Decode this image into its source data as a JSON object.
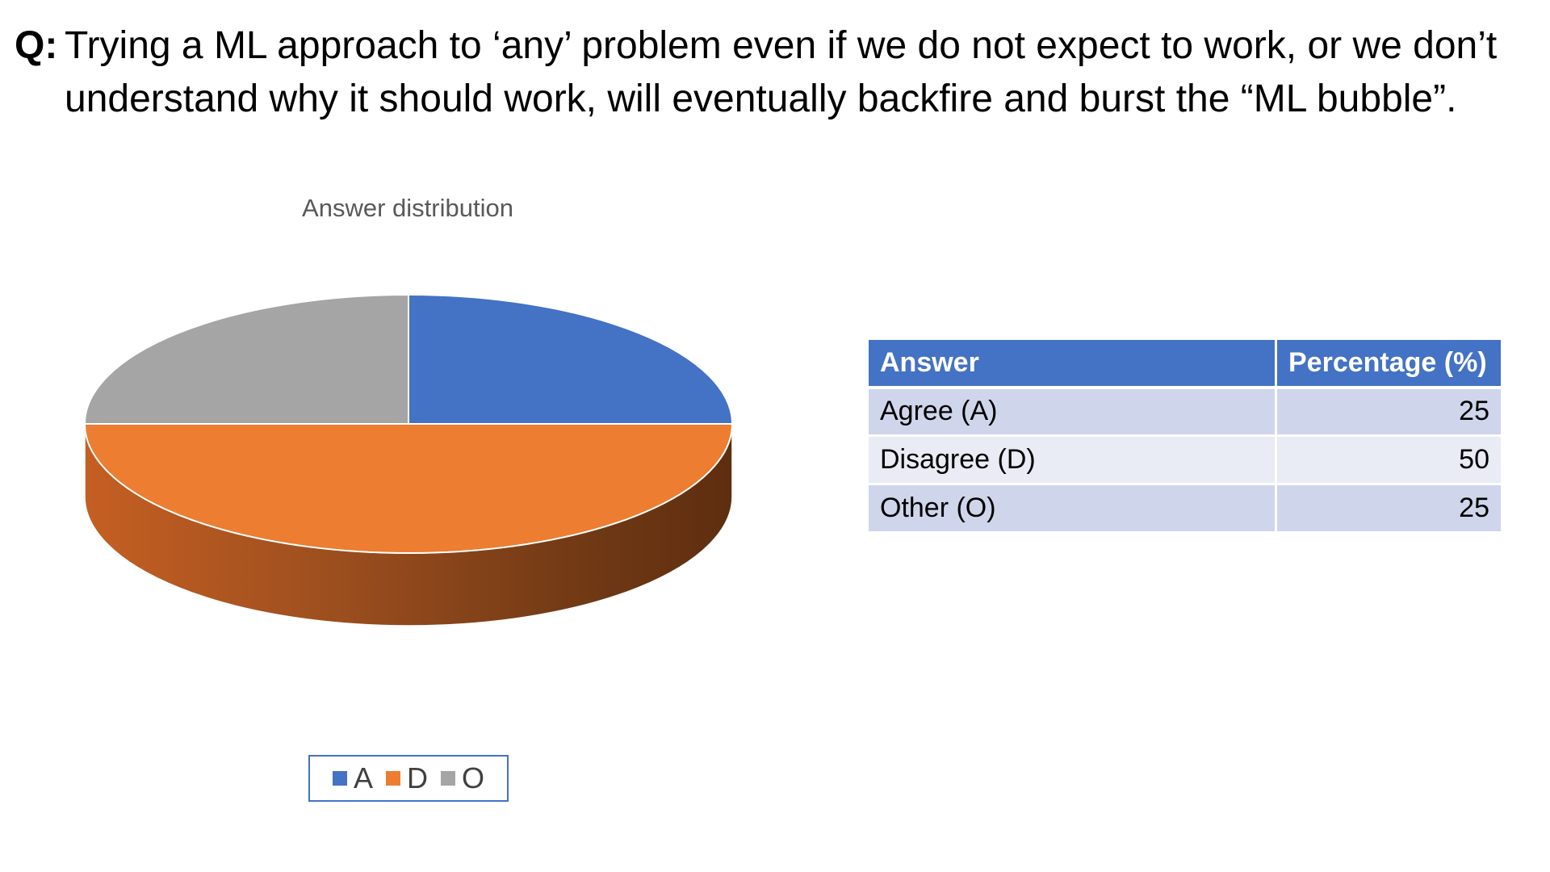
{
  "question": {
    "prefix": "Q:",
    "text": "Trying a ML approach to ‘any’ problem even if we do not expect to work, or we don’t understand why it should work, will eventually backfire and burst the “ML bubble”."
  },
  "chart_data": {
    "type": "pie",
    "title": "Answer distribution",
    "categories": [
      "A",
      "D",
      "O"
    ],
    "values": [
      25,
      50,
      25
    ],
    "colors": [
      "#4472c4",
      "#ed7d31",
      "#a5a5a5"
    ],
    "style": "3d",
    "legend_position": "bottom"
  },
  "table": {
    "headers": [
      "Answer",
      "Percentage (%)"
    ],
    "rows": [
      [
        "Agree (A)",
        "25"
      ],
      [
        "Disagree (D)",
        "50"
      ],
      [
        "Other (O)",
        "25"
      ]
    ]
  }
}
